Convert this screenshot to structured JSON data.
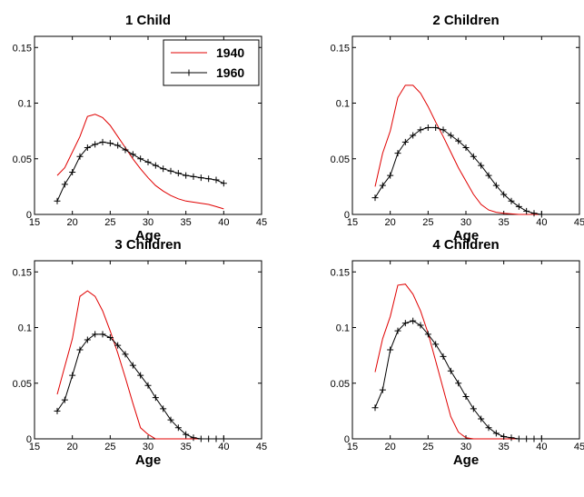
{
  "colors": {
    "series_1940": "#e00000",
    "series_1960": "#000000"
  },
  "chart_data": [
    {
      "type": "line",
      "title": "1 Child",
      "xlabel": "Age",
      "xlim": [
        15,
        45
      ],
      "ylim": [
        0,
        0.16
      ],
      "xticks": [
        15,
        20,
        25,
        30,
        35,
        40,
        45
      ],
      "yticks": [
        0,
        0.05,
        0.1,
        0.15
      ],
      "ytick_labels": [
        "0",
        "0.05",
        "0.1",
        "0.15"
      ],
      "legend": {
        "position": "top-right"
      },
      "series": [
        {
          "name": "1940",
          "marker": "none",
          "x": [
            18,
            19,
            20,
            21,
            22,
            23,
            24,
            25,
            26,
            27,
            28,
            29,
            30,
            31,
            32,
            33,
            34,
            35,
            36,
            37,
            38,
            39,
            40
          ],
          "y": [
            0.035,
            0.042,
            0.056,
            0.07,
            0.088,
            0.09,
            0.087,
            0.08,
            0.07,
            0.06,
            0.05,
            0.041,
            0.033,
            0.026,
            0.021,
            0.017,
            0.014,
            0.012,
            0.011,
            0.01,
            0.009,
            0.007,
            0.005
          ]
        },
        {
          "name": "1960",
          "marker": "plus",
          "x": [
            18,
            19,
            20,
            21,
            22,
            23,
            24,
            25,
            26,
            27,
            28,
            29,
            30,
            31,
            32,
            33,
            34,
            35,
            36,
            37,
            38,
            39,
            40
          ],
          "y": [
            0.012,
            0.027,
            0.038,
            0.052,
            0.06,
            0.063,
            0.065,
            0.064,
            0.062,
            0.058,
            0.054,
            0.05,
            0.047,
            0.044,
            0.041,
            0.039,
            0.037,
            0.035,
            0.034,
            0.033,
            0.032,
            0.031,
            0.028
          ]
        }
      ]
    },
    {
      "type": "line",
      "title": "2 Children",
      "xlabel": "Age",
      "xlim": [
        15,
        45
      ],
      "ylim": [
        0,
        0.16
      ],
      "xticks": [
        15,
        20,
        25,
        30,
        35,
        40,
        45
      ],
      "yticks": [
        0,
        0.05,
        0.1,
        0.15
      ],
      "ytick_labels": [
        "0",
        "0.05",
        "0.1",
        "0.15"
      ],
      "series": [
        {
          "name": "1940",
          "marker": "none",
          "x": [
            18,
            19,
            20,
            21,
            22,
            23,
            24,
            25,
            26,
            27,
            28,
            29,
            30,
            31,
            32,
            33,
            34,
            35,
            36,
            37,
            38,
            39,
            40
          ],
          "y": [
            0.025,
            0.055,
            0.075,
            0.105,
            0.116,
            0.116,
            0.109,
            0.097,
            0.083,
            0.07,
            0.056,
            0.042,
            0.03,
            0.018,
            0.009,
            0.004,
            0.002,
            0.001,
            0.0005,
            0,
            0,
            0,
            0
          ]
        },
        {
          "name": "1960",
          "marker": "plus",
          "x": [
            18,
            19,
            20,
            21,
            22,
            23,
            24,
            25,
            26,
            27,
            28,
            29,
            30,
            31,
            32,
            33,
            34,
            35,
            36,
            37,
            38,
            39,
            40
          ],
          "y": [
            0.015,
            0.026,
            0.035,
            0.055,
            0.065,
            0.071,
            0.076,
            0.078,
            0.078,
            0.076,
            0.071,
            0.066,
            0.06,
            0.052,
            0.044,
            0.035,
            0.026,
            0.018,
            0.012,
            0.007,
            0.003,
            0.001,
            0
          ]
        }
      ]
    },
    {
      "type": "line",
      "title": "3 Children",
      "xlabel": "Age",
      "xlim": [
        15,
        45
      ],
      "ylim": [
        0,
        0.16
      ],
      "xticks": [
        15,
        20,
        25,
        30,
        35,
        40,
        45
      ],
      "yticks": [
        0,
        0.05,
        0.1,
        0.15
      ],
      "ytick_labels": [
        "0",
        "0.05",
        "0.1",
        "0.15"
      ],
      "series": [
        {
          "name": "1940",
          "marker": "none",
          "x": [
            18,
            19,
            20,
            21,
            22,
            23,
            24,
            25,
            26,
            27,
            28,
            29,
            30,
            31,
            32,
            33,
            34,
            35,
            36,
            37,
            38,
            39,
            40
          ],
          "y": [
            0.04,
            0.065,
            0.09,
            0.128,
            0.133,
            0.128,
            0.115,
            0.097,
            0.077,
            0.055,
            0.032,
            0.01,
            0.004,
            0,
            0,
            0,
            0,
            0,
            0,
            0,
            0,
            0,
            0
          ]
        },
        {
          "name": "1960",
          "marker": "plus",
          "x": [
            18,
            19,
            20,
            21,
            22,
            23,
            24,
            25,
            26,
            27,
            28,
            29,
            30,
            31,
            32,
            33,
            34,
            35,
            36,
            37,
            38,
            39,
            40
          ],
          "y": [
            0.025,
            0.035,
            0.057,
            0.08,
            0.089,
            0.094,
            0.094,
            0.091,
            0.084,
            0.076,
            0.066,
            0.057,
            0.048,
            0.037,
            0.027,
            0.017,
            0.01,
            0.004,
            0.001,
            0,
            0,
            0,
            0
          ]
        }
      ]
    },
    {
      "type": "line",
      "title": "4 Children",
      "xlabel": "Age",
      "xlim": [
        15,
        45
      ],
      "ylim": [
        0,
        0.16
      ],
      "xticks": [
        15,
        20,
        25,
        30,
        35,
        40,
        45
      ],
      "yticks": [
        0,
        0.05,
        0.1,
        0.15
      ],
      "ytick_labels": [
        "0",
        "0.05",
        "0.1",
        "0.15"
      ],
      "series": [
        {
          "name": "1940",
          "marker": "none",
          "x": [
            18,
            19,
            20,
            21,
            22,
            23,
            24,
            25,
            26,
            27,
            28,
            29,
            30,
            31,
            32,
            33,
            34,
            35,
            36,
            37,
            38,
            39,
            40
          ],
          "y": [
            0.06,
            0.09,
            0.11,
            0.138,
            0.139,
            0.13,
            0.115,
            0.095,
            0.07,
            0.045,
            0.02,
            0.006,
            0.001,
            0,
            0,
            0,
            0,
            0,
            0,
            0,
            0,
            0,
            0
          ]
        },
        {
          "name": "1960",
          "marker": "plus",
          "x": [
            18,
            19,
            20,
            21,
            22,
            23,
            24,
            25,
            26,
            27,
            28,
            29,
            30,
            31,
            32,
            33,
            34,
            35,
            36,
            37,
            38,
            39,
            40
          ],
          "y": [
            0.028,
            0.044,
            0.08,
            0.097,
            0.104,
            0.106,
            0.102,
            0.094,
            0.085,
            0.074,
            0.061,
            0.05,
            0.038,
            0.027,
            0.018,
            0.01,
            0.005,
            0.002,
            0.001,
            0,
            0,
            0,
            0
          ]
        }
      ]
    }
  ]
}
